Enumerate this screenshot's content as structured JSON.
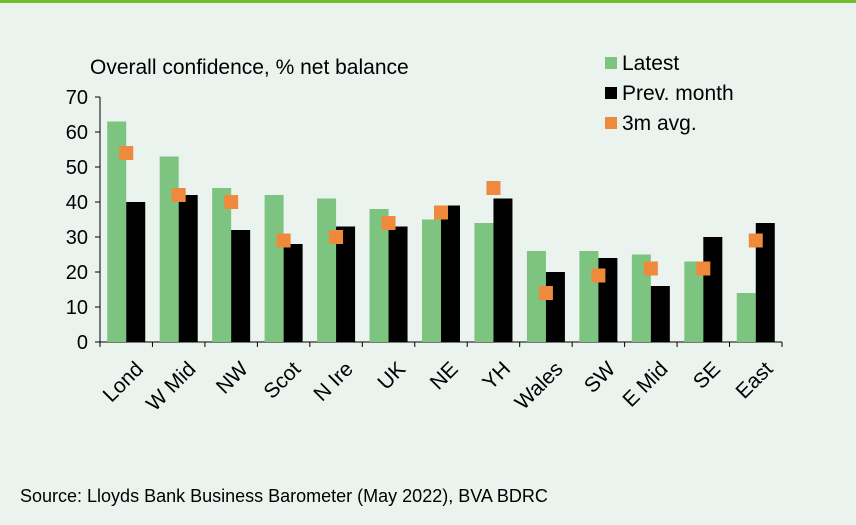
{
  "chart_data": {
    "type": "bar",
    "title": "Overall confidence, % net balance",
    "categories": [
      "Lond",
      "W Mid",
      "NW",
      "Scot",
      "N Ire",
      "UK",
      "NE",
      "YH",
      "Wales",
      "SW",
      "E Mid",
      "SE",
      "East"
    ],
    "series": [
      {
        "name": "Latest",
        "kind": "bar",
        "color": "#7cc47f",
        "values": [
          63,
          53,
          44,
          42,
          41,
          38,
          35,
          34,
          26,
          26,
          25,
          23,
          14
        ]
      },
      {
        "name": "Prev. month",
        "kind": "bar",
        "color": "#000000",
        "values": [
          40,
          42,
          32,
          28,
          33,
          33,
          39,
          41,
          20,
          24,
          16,
          30,
          34
        ]
      },
      {
        "name": "3m avg.",
        "kind": "marker",
        "color": "#ef8a3c",
        "values": [
          54,
          42,
          40,
          29,
          30,
          34,
          37,
          44,
          14,
          19,
          21,
          21,
          29
        ]
      }
    ],
    "ylim": [
      0,
      70
    ],
    "yticks": [
      0,
      10,
      20,
      30,
      40,
      50,
      60,
      70
    ],
    "xlabel": "",
    "ylabel": "",
    "legend": "top-right",
    "grid": false
  },
  "source": "Source: Lloyds Bank Business Barometer (May 2022), BVA BDRC"
}
